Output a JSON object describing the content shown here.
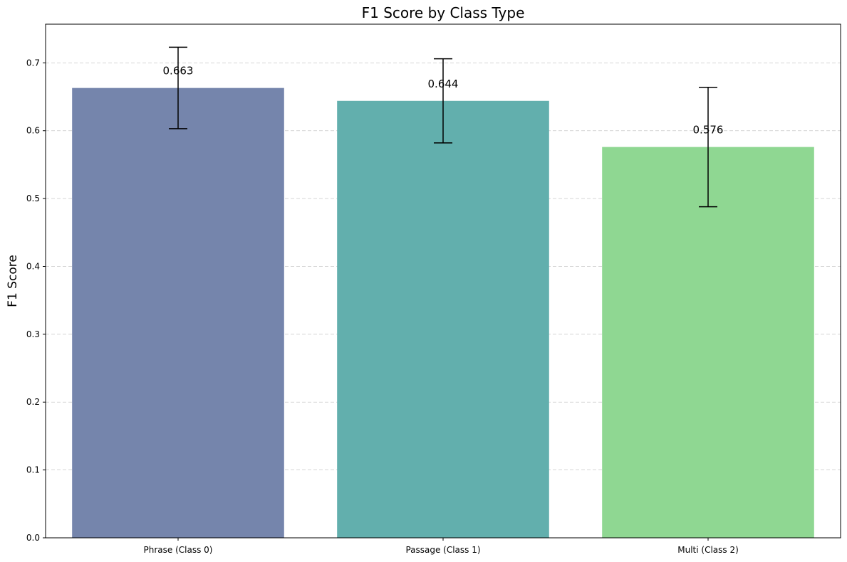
{
  "chart_data": {
    "type": "bar",
    "title": "F1 Score by Class Type",
    "xlabel": "",
    "ylabel": "F1 Score",
    "categories": [
      "Phrase (Class 0)",
      "Passage (Class 1)",
      "Multi (Class 2)"
    ],
    "values": [
      0.663,
      0.644,
      0.576
    ],
    "value_labels": [
      "0.663",
      "0.644",
      "0.576"
    ],
    "error": [
      0.06,
      0.062,
      0.088
    ],
    "colors": [
      "#7585ac",
      "#62afad",
      "#8fd792"
    ],
    "error_color": "#000000",
    "ylim": [
      0,
      0.757
    ],
    "yticks": [
      0.0,
      0.1,
      0.2,
      0.3,
      0.4,
      0.5,
      0.6,
      0.7
    ],
    "ytick_labels": [
      "0.0",
      "0.1",
      "0.2",
      "0.3",
      "0.4",
      "0.5",
      "0.6",
      "0.7"
    ],
    "grid": "y-dashed",
    "legend": "none"
  }
}
